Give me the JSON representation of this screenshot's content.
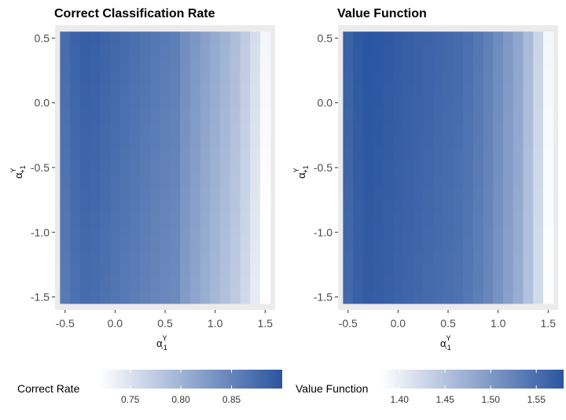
{
  "panels": [
    {
      "title": "Correct Classification Rate",
      "legend_title": "Correct Rate",
      "x_label": "α",
      "x_label_sup": "Y",
      "x_label_sub": "-1",
      "y_label": "α",
      "y_label_sup": "Y",
      "y_label_sub": "+1"
    },
    {
      "title": "Value Function",
      "legend_title": "Value Function",
      "x_label": "α",
      "x_label_sup": "Y",
      "x_label_sub": "-1",
      "y_label": "α",
      "y_label_sup": "Y",
      "y_label_sub": "+1"
    }
  ],
  "chart_data": [
    {
      "type": "heatmap",
      "title": "Correct Classification Rate",
      "fill_label": "Correct Rate",
      "xlim": [
        -0.6,
        1.6
      ],
      "ylim": [
        -1.6,
        0.6
      ],
      "x_ticks": [
        "-0.5",
        "0.0",
        "0.5",
        "1.0",
        "1.5"
      ],
      "x_tick_values": [
        -0.5,
        0.0,
        0.5,
        1.0,
        1.5
      ],
      "y_ticks": [
        "0.5",
        "0.0",
        "-0.5",
        "-1.0",
        "-1.5"
      ],
      "y_tick_values": [
        0.5,
        0.0,
        -0.5,
        -1.0,
        -1.5
      ],
      "x": [
        -0.5,
        -0.4,
        -0.3,
        -0.2,
        -0.1,
        0.0,
        0.1,
        0.2,
        0.3,
        0.4,
        0.5,
        0.6,
        0.7,
        0.8,
        0.9,
        1.0,
        1.1,
        1.2,
        1.3,
        1.4,
        1.5
      ],
      "y": [
        0.5,
        0.4,
        0.3,
        0.2,
        0.1,
        0.0,
        -0.1,
        -0.2,
        -0.3,
        -0.4,
        -0.5,
        -0.6,
        -0.7,
        -0.8,
        -0.9,
        -1.0,
        -1.1,
        -1.2,
        -1.3,
        -1.4,
        -1.5
      ],
      "x_profile": [
        0.875,
        0.885,
        0.89,
        0.888,
        0.884,
        0.88,
        0.876,
        0.872,
        0.868,
        0.864,
        0.86,
        0.857,
        0.84,
        0.83,
        0.82,
        0.81,
        0.8,
        0.79,
        0.775,
        0.755,
        0.73
      ],
      "y_gradient_per_unit": 0.018,
      "legend_breaks": [
        0.75,
        0.8,
        0.85
      ],
      "legend_labels": [
        "0.75",
        "0.80",
        "0.85"
      ],
      "range": [
        0.72,
        0.9
      ],
      "low_color": "#ffffff",
      "high_color": "#2a55a0"
    },
    {
      "type": "heatmap",
      "title": "Value Function",
      "fill_label": "Value Function",
      "xlim": [
        -0.6,
        1.6
      ],
      "ylim": [
        -1.6,
        0.6
      ],
      "x_ticks": [
        "-0.5",
        "0.0",
        "0.5",
        "1.0",
        "1.5"
      ],
      "x_tick_values": [
        -0.5,
        0.0,
        0.5,
        1.0,
        1.5
      ],
      "y_ticks": [
        "0.5",
        "0.0",
        "-0.5",
        "-1.0",
        "-1.5"
      ],
      "y_tick_values": [
        0.5,
        0.0,
        -0.5,
        -1.0,
        -1.5
      ],
      "x": [
        -0.5,
        -0.4,
        -0.3,
        -0.2,
        -0.1,
        0.0,
        0.1,
        0.2,
        0.3,
        0.4,
        0.5,
        0.6,
        0.7,
        0.8,
        0.9,
        1.0,
        1.1,
        1.2,
        1.3,
        1.4,
        1.5
      ],
      "y": [
        0.5,
        0.4,
        0.3,
        0.2,
        0.1,
        0.0,
        -0.1,
        -0.2,
        -0.3,
        -0.4,
        -0.5,
        -0.6,
        -0.7,
        -0.8,
        -0.9,
        -1.0,
        -1.1,
        -1.2,
        -1.3,
        -1.4,
        -1.5
      ],
      "x_profile": [
        1.565,
        1.575,
        1.58,
        1.578,
        1.575,
        1.572,
        1.569,
        1.566,
        1.563,
        1.56,
        1.557,
        1.554,
        1.548,
        1.54,
        1.53,
        1.515,
        1.5,
        1.485,
        1.46,
        1.43,
        1.39
      ],
      "y_gradient_per_unit": 0.01,
      "legend_breaks": [
        1.4,
        1.45,
        1.5,
        1.55
      ],
      "legend_labels": [
        "1.40",
        "1.45",
        "1.50",
        "1.55"
      ],
      "range": [
        1.38,
        1.58
      ],
      "low_color": "#ffffff",
      "high_color": "#2a55a0"
    }
  ]
}
